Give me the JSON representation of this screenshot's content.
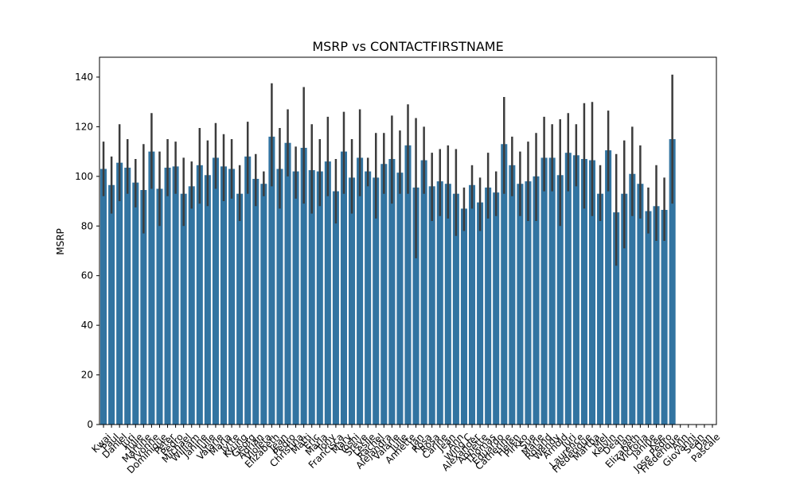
{
  "chart_data": {
    "type": "bar",
    "title": "MSRP vs CONTACTFIRSTNAME",
    "xlabel": "",
    "ylabel": "MSRP",
    "ylim": [
      0,
      148
    ],
    "yticks": [
      0,
      20,
      40,
      60,
      80,
      100,
      120,
      140
    ],
    "grid": false,
    "legend": "none",
    "bar_color": "#3274a1",
    "errorbar_color": "#3c3c3c",
    "categories": [
      "Kwai",
      "Paul",
      "Daniel",
      "Juri",
      "Julie",
      "Martine",
      "Yvonne",
      "Dominique",
      "Peter",
      "Pedro",
      "Michael",
      "William",
      "Janine",
      "Julie",
      "Valarie",
      "Maria",
      "Jytte",
      "Kyung",
      "Georg",
      "Adrian",
      "Violeta",
      "Elizabeth",
      "Jean",
      "Pedro",
      "Christina",
      "Matti",
      "Eric",
      "Maria",
      "Tony",
      "Francisca",
      "Mary",
      "Yoshi",
      "Steve",
      "Leslie",
      "Rachel",
      "Alejandra",
      "Valarie",
      "Julie",
      "Annette",
      "Jan",
      "Rosa",
      "Rosa",
      "Carine",
      "Jean",
      "Ann",
      "Wing C",
      "Alexander",
      "Annette",
      "Thomas",
      "Eduardo",
      "Catherine",
      "Helen",
      "Pirkko",
      "Sue",
      "Marie",
      "Roland",
      "Wendy",
      "Arnold",
      "Juri",
      "Laurence",
      "Frederique",
      "Martha",
      "Mel",
      "Kelvin",
      "Dean",
      "Jan",
      "Elizabeth",
      "Victoria",
      "Janine",
      "Kee",
      "Jose Pedro",
      "Frederique",
      "Ann",
      "Giovanni",
      "Sean",
      "Dan",
      "Pascale"
    ],
    "tick_labels_shown": [
      "Kwai",
      "Paul",
      "Daniel",
      "Juri",
      "Julie",
      "Martine",
      "Yvonne",
      "Dominique",
      "Peter",
      "Pedro",
      "Michael",
      "William",
      "Janine",
      "Julie",
      "Valarie",
      "Maria",
      "Jytte",
      "Kyung",
      "Georg",
      "Adrian",
      "Violeta",
      "Elizabeth",
      "Jean",
      "Pedro",
      "Christina",
      "Matti",
      "Eric",
      "Maria",
      "Tony",
      "Francisca",
      "Mary",
      "Yoshi",
      "Steve",
      "Leslie",
      "Rachel",
      "Alejandra",
      "Valarie",
      "Julie",
      "Annette",
      "Jan",
      "Rosa",
      "Rosa",
      "Carine",
      "Jean",
      "Ann",
      "Wing C",
      "Alexander",
      "Annette",
      "Thomas",
      "Eduardo",
      "Catherine",
      "Helen",
      "Pirkko",
      "Sue",
      "Marie",
      "Roland",
      "Wendy",
      "Arnold",
      "Juri",
      "Laurence",
      "Frederique",
      "Martha",
      "Mel",
      "Kelvin",
      "Dean",
      "Jan",
      "Elizabeth",
      "Victoria",
      "Janine",
      "Kee",
      "Jose Pedro",
      "Frederique",
      "Ann",
      "Giovanni",
      "Sean",
      "Dan",
      "Pascale"
    ],
    "values": [
      103,
      96.5,
      105.5,
      103.5,
      97.5,
      94.5,
      110,
      95,
      103.5,
      104,
      93,
      96,
      104.5,
      100.5,
      107.5,
      104,
      103,
      93,
      108,
      99,
      97,
      116,
      103,
      113.5,
      102,
      111.5,
      102.5,
      102,
      106,
      94,
      110,
      99.5,
      107.5,
      102,
      99.5,
      105,
      107,
      101.5,
      112.5,
      95.5,
      106.5,
      96,
      98,
      97,
      93,
      87,
      96.5,
      89.5,
      95.5,
      93.5,
      113,
      104.5,
      97,
      98,
      100,
      107.5,
      107.5,
      100.5,
      109.5,
      108.5,
      107,
      106.5,
      93,
      110.5,
      85.5,
      93,
      101,
      97,
      86,
      88,
      86.5,
      115,
      null,
      null,
      null,
      null,
      null
    ],
    "errors_low": [
      92,
      85,
      90,
      93,
      87.5,
      77,
      95,
      80,
      92,
      93,
      80,
      87,
      89,
      88,
      95,
      90,
      91,
      82,
      93,
      88,
      92,
      96,
      87,
      100,
      91,
      89,
      85,
      88,
      92,
      81,
      93,
      85,
      92,
      96,
      83,
      93,
      89,
      93,
      93,
      67,
      93,
      82,
      84,
      83,
      76,
      78,
      87,
      78,
      83,
      84,
      93,
      92,
      84,
      82,
      82,
      94,
      94,
      80,
      94,
      96,
      87,
      84,
      82,
      94,
      64,
      71,
      84,
      83,
      77,
      74,
      74,
      89,
      null,
      null,
      null,
      null,
      null
    ],
    "errors_high": [
      114,
      108,
      121,
      115,
      107,
      113,
      125.5,
      110,
      115,
      114,
      107.5,
      106,
      119.5,
      114.5,
      121.5,
      117,
      115,
      104.5,
      122,
      109,
      102,
      137.5,
      119.5,
      127,
      112,
      136,
      121,
      115,
      124,
      107,
      126,
      115,
      127,
      107.5,
      117.5,
      117.5,
      124.5,
      118.5,
      129,
      123.5,
      120,
      109.5,
      111,
      112.5,
      111,
      95.5,
      104.5,
      99.5,
      109.5,
      102,
      132,
      116,
      110,
      114,
      117.5,
      124,
      121,
      123,
      125.5,
      121,
      129.5,
      130,
      104.5,
      126.5,
      109,
      114.5,
      120,
      112.5,
      95.5,
      104.5,
      99.5,
      141,
      null,
      null,
      null,
      null,
      null
    ]
  }
}
